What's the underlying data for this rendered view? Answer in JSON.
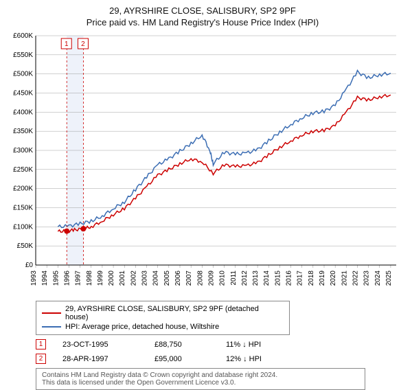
{
  "title1": "29, AYRSHIRE CLOSE, SALISBURY, SP2 9PF",
  "title2": "Price paid vs. HM Land Registry's House Price Index (HPI)",
  "chart": {
    "type": "line",
    "x": {
      "min": 1993,
      "max": 2025.5,
      "ticks": [
        1993,
        1994,
        1995,
        1996,
        1997,
        1998,
        1999,
        2000,
        2001,
        2002,
        2003,
        2004,
        2005,
        2006,
        2007,
        2008,
        2009,
        2010,
        2011,
        2012,
        2013,
        2014,
        2015,
        2016,
        2017,
        2018,
        2019,
        2020,
        2021,
        2022,
        2023,
        2024,
        2025
      ]
    },
    "y": {
      "min": 0,
      "max": 600000,
      "step": 50000,
      "unit": "£",
      "suffix": "K",
      "labels": [
        "£0",
        "£50K",
        "£100K",
        "£150K",
        "£200K",
        "£250K",
        "£300K",
        "£350K",
        "£400K",
        "£450K",
        "£500K",
        "£550K",
        "£600K"
      ]
    },
    "grid_color": "#888888",
    "background": "#ffffff",
    "series": [
      {
        "name": "price_paid",
        "color": "#cc0000",
        "width": 1.5,
        "label": "29, AYRSHIRE CLOSE, SALISBURY, SP2 9PF (detached house)",
        "points": [
          [
            1995,
            88000
          ],
          [
            1995.8,
            88750
          ],
          [
            1996.5,
            92000
          ],
          [
            1997.3,
            95000
          ],
          [
            1998,
            100000
          ],
          [
            1999,
            115000
          ],
          [
            2000,
            132000
          ],
          [
            2001,
            148000
          ],
          [
            2002,
            175000
          ],
          [
            2003,
            205000
          ],
          [
            2004,
            235000
          ],
          [
            2005,
            250000
          ],
          [
            2006,
            265000
          ],
          [
            2007,
            278000
          ],
          [
            2008,
            270000
          ],
          [
            2009,
            240000
          ],
          [
            2010,
            262000
          ],
          [
            2011,
            258000
          ],
          [
            2012,
            260000
          ],
          [
            2013,
            268000
          ],
          [
            2014,
            288000
          ],
          [
            2015,
            308000
          ],
          [
            2016,
            325000
          ],
          [
            2017,
            340000
          ],
          [
            2018,
            350000
          ],
          [
            2019,
            352000
          ],
          [
            2020,
            365000
          ],
          [
            2021,
            400000
          ],
          [
            2022,
            438000
          ],
          [
            2023,
            432000
          ],
          [
            2024,
            440000
          ],
          [
            2025,
            445000
          ]
        ]
      },
      {
        "name": "hpi",
        "color": "#3b6db3",
        "width": 1.5,
        "label": "HPI: Average price, detached house, Wiltshire",
        "points": [
          [
            1995,
            100000
          ],
          [
            1996,
            102000
          ],
          [
            1997,
            108000
          ],
          [
            1998,
            115000
          ],
          [
            1999,
            128000
          ],
          [
            2000,
            148000
          ],
          [
            2001,
            165000
          ],
          [
            2002,
            198000
          ],
          [
            2003,
            230000
          ],
          [
            2004,
            262000
          ],
          [
            2005,
            278000
          ],
          [
            2006,
            298000
          ],
          [
            2007,
            318000
          ],
          [
            2008,
            340000
          ],
          [
            2008.7,
            300000
          ],
          [
            2009,
            265000
          ],
          [
            2010,
            295000
          ],
          [
            2011,
            290000
          ],
          [
            2012,
            293000
          ],
          [
            2013,
            302000
          ],
          [
            2014,
            325000
          ],
          [
            2015,
            348000
          ],
          [
            2016,
            368000
          ],
          [
            2017,
            385000
          ],
          [
            2018,
            398000
          ],
          [
            2019,
            402000
          ],
          [
            2020,
            418000
          ],
          [
            2021,
            460000
          ],
          [
            2022,
            505000
          ],
          [
            2023,
            490000
          ],
          [
            2024,
            498000
          ],
          [
            2025,
            502000
          ]
        ]
      }
    ],
    "sale_markers": [
      {
        "n": "1",
        "year": 1995.8,
        "price": 88750
      },
      {
        "n": "2",
        "year": 1997.3,
        "price": 95000
      }
    ],
    "band": {
      "from": 1995.8,
      "to": 1997.3,
      "fill": "#eef2fa"
    }
  },
  "sales": [
    {
      "n": "1",
      "date": "23-OCT-1995",
      "price": "£88,750",
      "delta": "11% ↓ HPI"
    },
    {
      "n": "2",
      "date": "28-APR-1997",
      "price": "£95,000",
      "delta": "12% ↓ HPI"
    }
  ],
  "license": {
    "l1": "Contains HM Land Registry data © Crown copyright and database right 2024.",
    "l2": "This data is licensed under the Open Government Licence v3.0."
  }
}
